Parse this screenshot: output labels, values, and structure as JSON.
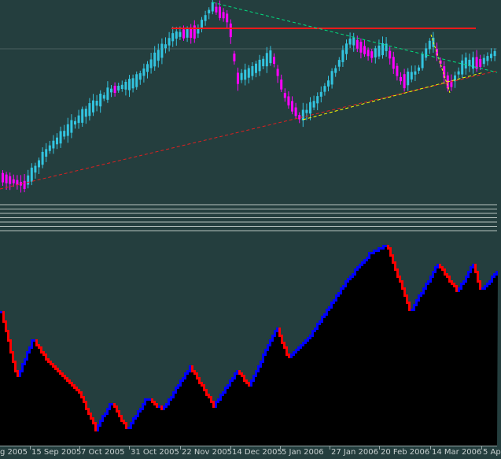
{
  "chart_data": {
    "type": "candlestick",
    "x_tick_labels": [
      "g 2005",
      "15 Sep 2005",
      "7 Oct 2005",
      "31 Oct 2005",
      "22 Nov 2005",
      "14 Dec 2005",
      "5 Jan 2006",
      "27 Jan 2006",
      "20 Feb 2006",
      "14 Mar 2006",
      "5 Ap"
    ],
    "colors": {
      "background": "#243e3e",
      "bull": "#33c4e0",
      "bear": "#ff00ff",
      "resistance": "#ff1a1a",
      "support_dashed": "#e02020",
      "yellow_trend": "#ffff00",
      "green_trend": "#00e080",
      "indicator_up": "#0000ff",
      "indicator_down": "#ff0000",
      "indicator_fill": "#000000"
    },
    "grid": false
  }
}
